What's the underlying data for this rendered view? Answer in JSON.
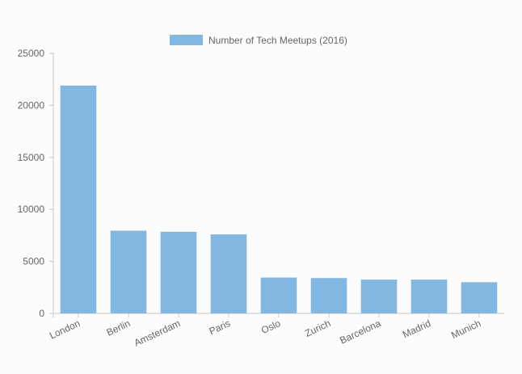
{
  "chart_data": {
    "type": "bar",
    "categories": [
      "London",
      "Berlin",
      "Amsterdam",
      "Paris",
      "Oslo",
      "Zurich",
      "Barcelona",
      "Madrid",
      "Munich"
    ],
    "series": [
      {
        "name": "Number of Tech Meetups (2016)",
        "values": [
          21900,
          7950,
          7850,
          7600,
          3450,
          3400,
          3250,
          3250,
          3000
        ],
        "color": "#82b7e2"
      }
    ],
    "ylim": [
      0,
      25000
    ],
    "yticks": [
      "0",
      "5000",
      "10000",
      "15000",
      "20000",
      "25000"
    ],
    "grid": false,
    "legend_position": "top-center",
    "x_tick_rotation": "diagonal"
  }
}
